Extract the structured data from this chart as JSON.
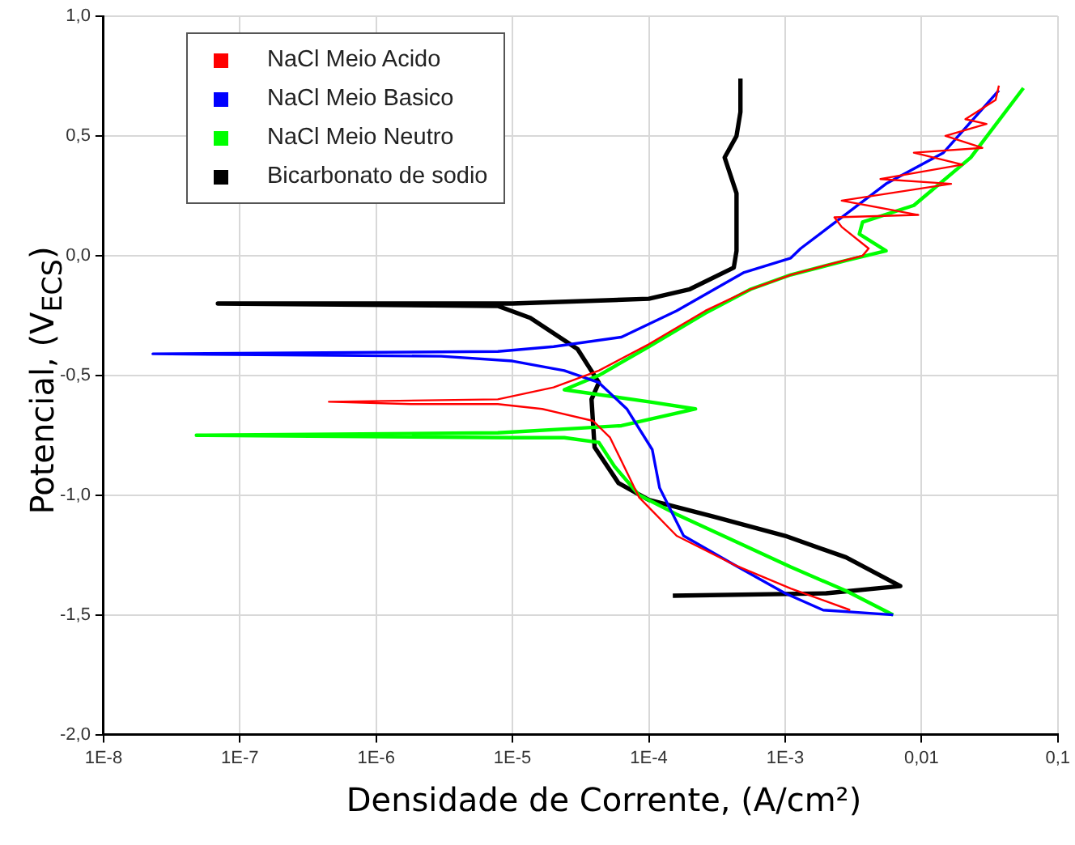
{
  "chart_data": {
    "type": "line",
    "xlabel": "Densidade de Corrente, (A/cm²)",
    "ylabel": "Potencial, (V$_{ECS}$)",
    "log": "x",
    "grid": true,
    "legend": "top left",
    "marker": "none",
    "line_style": "solid",
    "xlim": [
      1e-08,
      0.1
    ],
    "xticks": [
      {
        "value": 1e-08,
        "label": "1E-8"
      },
      {
        "value": 1e-07,
        "label": "1E-7"
      },
      {
        "value": 1e-06,
        "label": "1E-6"
      },
      {
        "value": 1e-05,
        "label": "1E-5"
      },
      {
        "value": 0.0001,
        "label": "1E-4"
      },
      {
        "value": 0.001,
        "label": "1E-3"
      },
      {
        "value": 0.01,
        "label": "0,01"
      },
      {
        "value": 0.1,
        "label": "0,1"
      }
    ],
    "ylim": [
      -2,
      1
    ],
    "yticks": [
      {
        "value": -2,
        "label": "-2,0"
      },
      {
        "value": -1.5,
        "label": "-1,5"
      },
      {
        "value": -1,
        "label": "-1,0"
      },
      {
        "value": -0.5,
        "label": "-0,5"
      },
      {
        "value": 0,
        "label": "0,0"
      },
      {
        "value": 0.5,
        "label": "0,5"
      },
      {
        "value": 1,
        "label": "1,0"
      }
    ],
    "series": [
      {
        "name": "NaCl Meio Acido",
        "color": "#ff0000",
        "x": [
          0.003,
          0.0011,
          0.00042,
          0.00016,
          8.5e-05,
          5.2e-05,
          3.9e-05,
          1.65e-05,
          7.8e-06,
          1.8e-06,
          4.5e-07,
          7.8e-06,
          2e-05,
          4.3e-05,
          0.0001,
          0.00026,
          0.00056,
          0.0011,
          0.0037,
          0.0041,
          0.0026,
          0.0023,
          0.0095,
          0.0026,
          0.0165,
          0.005,
          0.02,
          0.0088,
          0.028,
          0.015,
          0.03,
          0.021,
          0.035,
          0.037
        ],
        "values": [
          -1.48,
          -1.39,
          -1.29,
          -1.17,
          -1.01,
          -0.76,
          -0.69,
          -0.64,
          -0.62,
          -0.62,
          -0.61,
          -0.6,
          -0.55,
          -0.48,
          -0.37,
          -0.23,
          -0.14,
          -0.08,
          0,
          0.03,
          0.12,
          0.16,
          0.17,
          0.23,
          0.3,
          0.32,
          0.38,
          0.43,
          0.45,
          0.5,
          0.55,
          0.57,
          0.65,
          0.71
        ]
      },
      {
        "name": "NaCl Meio Basico",
        "color": "#0000ff",
        "x": [
          0.0062,
          0.0019,
          0.001,
          0.00042,
          0.00018,
          0.00012,
          0.000106,
          6.9e-05,
          4.3e-05,
          2.4e-05,
          1e-05,
          3e-06,
          2.3e-08,
          7.8e-06,
          2e-05,
          6.3e-05,
          0.00016,
          0.0005,
          0.0011,
          0.0013,
          0.0021,
          0.0055,
          0.0145,
          0.037
        ],
        "values": [
          -1.5,
          -1.48,
          -1.41,
          -1.29,
          -1.17,
          -0.97,
          -0.81,
          -0.64,
          -0.53,
          -0.48,
          -0.44,
          -0.42,
          -0.41,
          -0.4,
          -0.38,
          -0.34,
          -0.23,
          -0.07,
          -0.01,
          0.03,
          0.12,
          0.3,
          0.43,
          0.69
        ]
      },
      {
        "name": "NaCl Meio Neutro",
        "color": "#00ff00",
        "x": [
          0.0062,
          0.0028,
          0.0011,
          0.00042,
          0.00016,
          8.5e-05,
          5.6e-05,
          4.3e-05,
          2.4e-05,
          1e-05,
          4.8e-08,
          7.8e-06,
          3.2e-05,
          6.3e-05,
          0.00022,
          0.0001,
          2.4e-05,
          4.3e-05,
          0.0001,
          0.00026,
          0.00056,
          0.0011,
          0.0028,
          0.0055,
          0.0035,
          0.0037,
          0.0088,
          0.023,
          0.056
        ],
        "values": [
          -1.5,
          -1.4,
          -1.3,
          -1.19,
          -1.08,
          -1,
          -0.88,
          -0.78,
          -0.76,
          -0.76,
          -0.75,
          -0.74,
          -0.72,
          -0.71,
          -0.64,
          -0.61,
          -0.56,
          -0.5,
          -0.38,
          -0.24,
          -0.14,
          -0.08,
          -0.02,
          0.02,
          0.09,
          0.14,
          0.21,
          0.41,
          0.7
        ]
      },
      {
        "name": "Bicarbonato de sodio",
        "color": "#000000",
        "x": [
          0.00015,
          0.002,
          0.007,
          0.0028,
          0.001,
          0.0003,
          0.0001,
          6e-05,
          4e-05,
          3.8e-05,
          4.3e-05,
          3e-05,
          1.35e-05,
          7.8e-06,
          6.9e-08,
          1e-05,
          0.0001,
          0.0002,
          0.00042,
          0.00044,
          0.00044,
          0.00036,
          0.00044,
          0.00047,
          0.00047
        ],
        "values": [
          -1.42,
          -1.41,
          -1.38,
          -1.26,
          -1.17,
          -1.09,
          -1.02,
          -0.95,
          -0.8,
          -0.6,
          -0.53,
          -0.39,
          -0.26,
          -0.21,
          -0.2,
          -0.2,
          -0.18,
          -0.14,
          -0.05,
          0.02,
          0.26,
          0.41,
          0.5,
          0.6,
          0.74
        ]
      }
    ]
  }
}
